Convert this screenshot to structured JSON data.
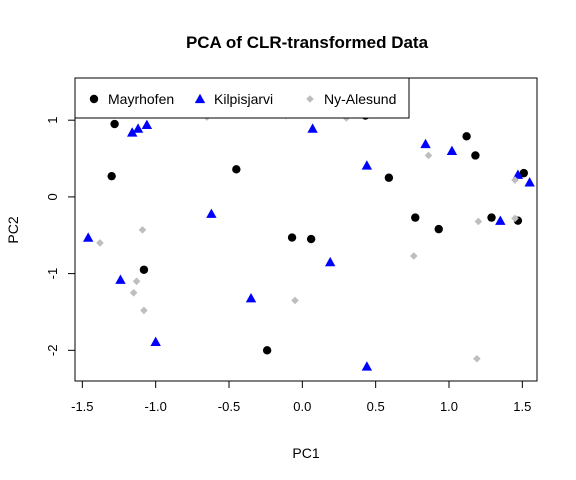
{
  "chart_data": {
    "type": "scatter",
    "title": "PCA of CLR-transformed Data",
    "xlabel": "PC1",
    "ylabel": "PC2",
    "xlim": [
      -1.55,
      1.6
    ],
    "ylim": [
      -2.4,
      1.55
    ],
    "x_ticks": [
      -1.5,
      -1.0,
      -0.5,
      0.0,
      0.5,
      1.0,
      1.5
    ],
    "x_tick_labels": [
      "-1.5",
      "-1.0",
      "-0.5",
      "0.0",
      "0.5",
      "1.0",
      "1.5"
    ],
    "y_ticks": [
      -2,
      -1,
      0,
      1
    ],
    "y_tick_labels": [
      "-2",
      "-1",
      "0",
      "1"
    ],
    "grid": false,
    "legend_position": "top-left",
    "series": [
      {
        "name": "Mayrhofen",
        "marker": "circle",
        "color": "#000000",
        "points": [
          [
            -1.28,
            0.95
          ],
          [
            -1.3,
            0.27
          ],
          [
            -0.45,
            0.36
          ],
          [
            0.43,
            1.06
          ],
          [
            -0.07,
            -0.53
          ],
          [
            0.06,
            -0.55
          ],
          [
            -1.08,
            -0.95
          ],
          [
            -0.24,
            -2.0
          ],
          [
            0.59,
            0.25
          ],
          [
            0.77,
            -0.27
          ],
          [
            0.93,
            -0.42
          ],
          [
            1.12,
            0.79
          ],
          [
            1.18,
            0.54
          ],
          [
            1.29,
            -0.27
          ],
          [
            1.47,
            -0.31
          ],
          [
            1.51,
            0.31
          ]
        ]
      },
      {
        "name": "Kilpisjarvi",
        "marker": "triangle",
        "color": "#0000ff",
        "points": [
          [
            -1.16,
            0.84
          ],
          [
            -1.12,
            0.89
          ],
          [
            -1.06,
            0.94
          ],
          [
            -1.46,
            -0.53
          ],
          [
            -1.24,
            -1.08
          ],
          [
            -1.0,
            -1.89
          ],
          [
            -0.62,
            -0.22
          ],
          [
            -0.35,
            -1.32
          ],
          [
            0.07,
            0.89
          ],
          [
            0.19,
            -0.85
          ],
          [
            0.44,
            0.41
          ],
          [
            0.44,
            -2.21
          ],
          [
            0.84,
            0.69
          ],
          [
            1.02,
            0.6
          ],
          [
            1.35,
            -0.31
          ],
          [
            1.47,
            0.29
          ],
          [
            1.55,
            0.19
          ]
        ]
      },
      {
        "name": "Ny-Alesund",
        "marker": "diamond",
        "color": "#bebebe",
        "points": [
          [
            -1.38,
            -0.6
          ],
          [
            -1.09,
            -0.43
          ],
          [
            -1.13,
            -1.1
          ],
          [
            -1.15,
            -1.25
          ],
          [
            -1.08,
            -1.48
          ],
          [
            -0.65,
            1.04
          ],
          [
            -0.11,
            1.06
          ],
          [
            -0.05,
            -1.35
          ],
          [
            0.3,
            1.03
          ],
          [
            0.76,
            -0.77
          ],
          [
            0.86,
            0.54
          ],
          [
            1.2,
            -0.32
          ],
          [
            1.19,
            -2.11
          ],
          [
            1.45,
            0.22
          ],
          [
            1.45,
            -0.28
          ]
        ]
      }
    ]
  }
}
